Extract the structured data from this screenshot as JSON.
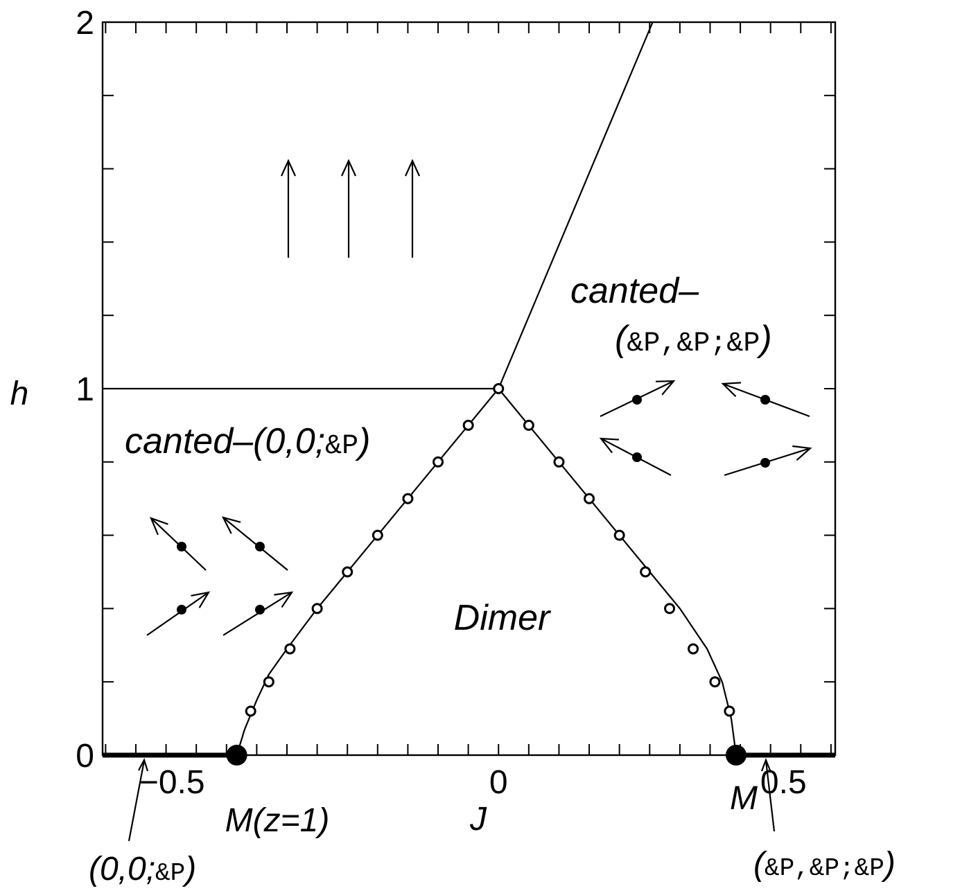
{
  "chart_data": {
    "type": "scatter",
    "xlabel": "J",
    "ylabel": "h",
    "xlim": [
      -0.655,
      0.557
    ],
    "ylim": [
      0,
      2
    ],
    "x_ticks": [
      {
        "value": -0.5,
        "label": "−0.5"
      },
      {
        "value": 0,
        "label": "0"
      },
      {
        "value": 0.5,
        "label": "0.5"
      }
    ],
    "y_ticks": [
      {
        "value": 0,
        "label": "0"
      },
      {
        "value": 1,
        "label": "1"
      },
      {
        "value": 2,
        "label": "2"
      }
    ],
    "x_minor_step": 0.05,
    "y_minor_step": 0.2,
    "boundaries": [
      {
        "id": "left-dimer-boundary",
        "x": [
          -0.433,
          -0.42,
          -0.4,
          -0.38,
          -0.35,
          -0.3,
          -0.25,
          -0.2,
          -0.15,
          -0.1,
          -0.05,
          0
        ],
        "y": [
          0,
          0.07,
          0.15,
          0.22,
          0.29,
          0.4,
          0.5,
          0.6,
          0.7,
          0.8,
          0.9,
          1
        ]
      },
      {
        "id": "right-dimer-boundary",
        "x": [
          0,
          0.05,
          0.1,
          0.15,
          0.2,
          0.25,
          0.3,
          0.345,
          0.37,
          0.385,
          0.393
        ],
        "y": [
          1,
          0.9,
          0.8,
          0.7,
          0.6,
          0.5,
          0.4,
          0.29,
          0.2,
          0.1,
          0
        ]
      },
      {
        "id": "saturation-line-left",
        "x": [
          -0.655,
          0
        ],
        "y": [
          1,
          1
        ]
      },
      {
        "id": "saturation-line-right",
        "x": [
          0,
          0.255
        ],
        "y": [
          1,
          2
        ]
      }
    ],
    "open_points": [
      {
        "x": -0.41,
        "y": 0.12
      },
      {
        "x": -0.38,
        "y": 0.2
      },
      {
        "x": -0.345,
        "y": 0.29
      },
      {
        "x": -0.3,
        "y": 0.4
      },
      {
        "x": -0.25,
        "y": 0.5
      },
      {
        "x": -0.2,
        "y": 0.6
      },
      {
        "x": -0.15,
        "y": 0.7
      },
      {
        "x": -0.1,
        "y": 0.8
      },
      {
        "x": -0.05,
        "y": 0.9
      },
      {
        "x": 0,
        "y": 1
      },
      {
        "x": 0.05,
        "y": 0.9
      },
      {
        "x": 0.1,
        "y": 0.8
      },
      {
        "x": 0.15,
        "y": 0.7
      },
      {
        "x": 0.2,
        "y": 0.6
      },
      {
        "x": 0.243,
        "y": 0.5
      },
      {
        "x": 0.283,
        "y": 0.4
      },
      {
        "x": 0.322,
        "y": 0.29
      },
      {
        "x": 0.358,
        "y": 0.2
      },
      {
        "x": 0.382,
        "y": 0.12
      }
    ],
    "filled_points": [
      {
        "x": -0.433,
        "y": 0,
        "label": "M(z=1)"
      },
      {
        "x": 0.393,
        "y": 0,
        "label": "M"
      }
    ],
    "thick_segments": [
      {
        "x": [
          -0.655,
          -0.433
        ],
        "y": [
          0,
          0
        ],
        "label": "(0,0;&P)"
      },
      {
        "x": [
          0.393,
          0.557
        ],
        "y": [
          0,
          0
        ],
        "label": "(&P,&P;&P)"
      }
    ],
    "region_labels": [
      {
        "id": "canted-00p",
        "text": "canted–(0,0;",
        "sym": "&P",
        "close": ")"
      },
      {
        "id": "canted-ppp-line1",
        "text": "canted–"
      },
      {
        "id": "canted-ppp-line2",
        "open": "(",
        "sym": "&P,&P;&P",
        "close": ")"
      },
      {
        "id": "dimer",
        "text": "Dimer"
      }
    ],
    "annotations": [
      {
        "id": "label-00p",
        "open": "(0,0;",
        "sym": "&P",
        "close": ")"
      },
      {
        "id": "label-ppp",
        "open": "(",
        "sym": "&P,&P;&P",
        "close": ")"
      },
      {
        "id": "label-m-left",
        "text": "M(z=1)"
      },
      {
        "id": "label-m-right",
        "text": "M"
      }
    ]
  }
}
